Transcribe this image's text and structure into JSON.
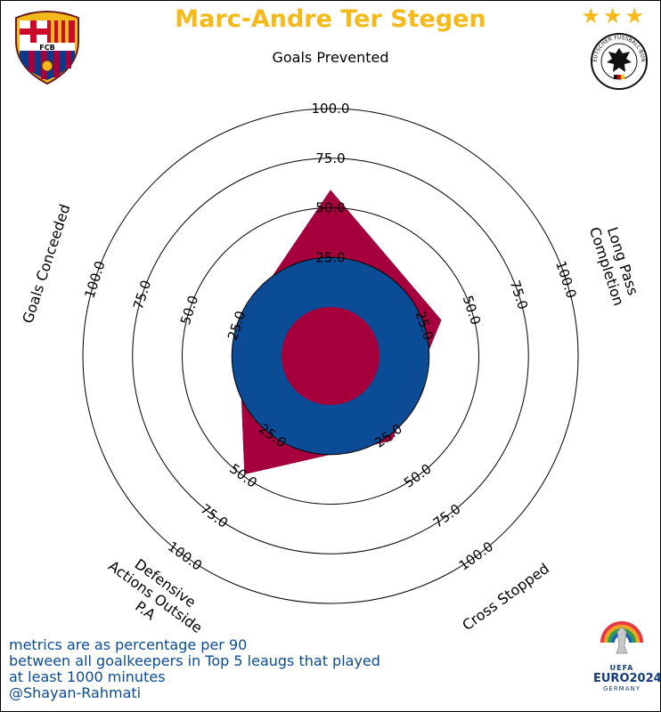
{
  "colors": {
    "title": "#f5b919",
    "blue": "#0a4c96",
    "crimson": "#a5003c",
    "note": "#0a4c96",
    "star": "#f5b919"
  },
  "title": "Marc-Andre Ter Stegen",
  "badges": {
    "club_initials": "FCB",
    "stars": "★★★",
    "dfb_text": "DEUTSCHER FUSSBALL-BUND",
    "euro_uefa": "UEFA",
    "euro_name": "EURO2024",
    "euro_country": "GERMANY"
  },
  "chart_data": {
    "type": "radar",
    "player": "Marc-Andre Ter Stegen",
    "range": [
      0,
      100
    ],
    "rings": [
      25,
      50,
      75,
      100
    ],
    "ring_labels": [
      "25.0",
      "50.0",
      "75.0",
      "100.0"
    ],
    "axes": [
      {
        "name": "Goals Prevented",
        "label": "Goals Prevented",
        "value": 59
      },
      {
        "name": "Long Pass Completion",
        "label": "Long Pass\nCompletion",
        "value": 34
      },
      {
        "name": "Cross Stopped",
        "label": "Cross Stopped",
        "value": 28
      },
      {
        "name": "Defensive Actions Outside P.A",
        "label": "Defensive\nActions Outside\nP.A",
        "value": 49
      },
      {
        "name": "Goals Conceeded",
        "label": "Goals Conceeded",
        "value": 24
      }
    ]
  },
  "note": {
    "lines": [
      "metrics are as percentage per 90",
      "between all goalkeepers in Top 5 leaugs that played",
      "at least 1000 minutes",
      "@Shayan-Rahmati"
    ]
  }
}
